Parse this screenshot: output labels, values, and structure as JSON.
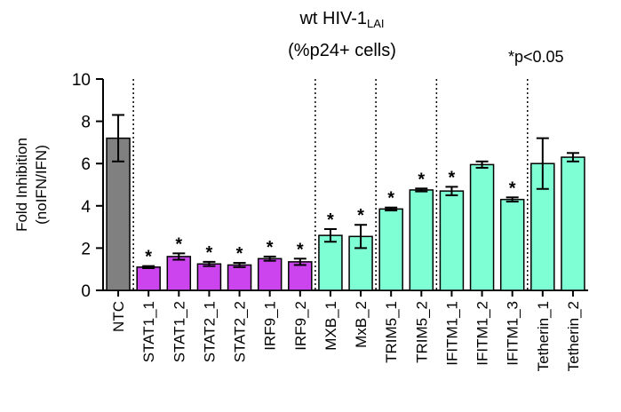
{
  "chart_data": {
    "type": "bar",
    "title_main": "wt HIV-1",
    "title_sub": "LAI",
    "title_line2": "(%p24+ cells)",
    "note": "*p<0.05",
    "ylabel_line1": "Fold Inhibition",
    "ylabel_line2": "(noIFN/IFN)",
    "ylim": [
      0,
      10
    ],
    "yticks": [
      "0",
      "2",
      "4",
      "6",
      "8",
      "10"
    ],
    "significance_marker": "*",
    "categories": [
      "NTC",
      "STAT1_1",
      "STAT1_2",
      "STAT2_1",
      "STAT2_2",
      "IRF9_1",
      "IRF9_2",
      "MXB_1",
      "MxB_2",
      "TRIM5_1",
      "TRIM5_2",
      "IFITM1_1",
      "IFITM1_2",
      "IFITM1_3",
      "Tetherin_1",
      "Tetherin_2"
    ],
    "values": [
      7.2,
      1.1,
      1.6,
      1.25,
      1.2,
      1.5,
      1.35,
      2.6,
      2.55,
      3.85,
      4.75,
      4.7,
      5.95,
      4.3,
      6.0,
      6.3
    ],
    "errors": [
      1.1,
      0.05,
      0.15,
      0.1,
      0.1,
      0.1,
      0.15,
      0.3,
      0.55,
      0.07,
      0.07,
      0.2,
      0.15,
      0.1,
      1.2,
      0.2
    ],
    "significant": [
      false,
      true,
      true,
      true,
      true,
      true,
      true,
      true,
      true,
      true,
      true,
      true,
      false,
      true,
      false,
      false
    ],
    "colors": [
      "#808080",
      "#cc44ee",
      "#cc44ee",
      "#cc44ee",
      "#cc44ee",
      "#cc44ee",
      "#cc44ee",
      "#7fffd4",
      "#7fffd4",
      "#7fffd4",
      "#7fffd4",
      "#7fffd4",
      "#7fffd4",
      "#7fffd4",
      "#7fffd4",
      "#7fffd4"
    ],
    "group_separators_after": [
      0,
      6,
      8,
      10,
      13
    ]
  }
}
